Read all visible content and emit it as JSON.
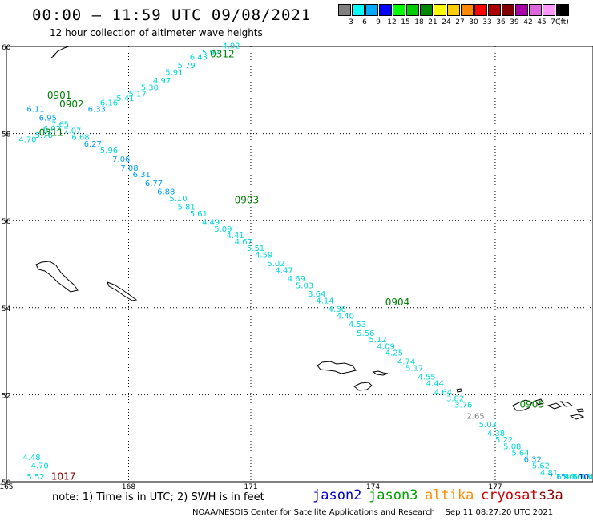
{
  "header": {
    "title": "00:00 – 11:59 UTC 09/08/2021",
    "subtitle": "12 hour collection of altimeter wave heights"
  },
  "colorbar": {
    "unit": "(ft)",
    "bins": [
      {
        "label": "3",
        "color": "#808080"
      },
      {
        "label": "6",
        "color": "#00ffff"
      },
      {
        "label": "9",
        "color": "#00aaff"
      },
      {
        "label": "12",
        "color": "#0000ff"
      },
      {
        "label": "15",
        "color": "#00ff00"
      },
      {
        "label": "18",
        "color": "#00cc00"
      },
      {
        "label": "21",
        "color": "#008800"
      },
      {
        "label": "24",
        "color": "#ffff00"
      },
      {
        "label": "27",
        "color": "#ffcc00"
      },
      {
        "label": "30",
        "color": "#ff8800"
      },
      {
        "label": "33",
        "color": "#ff0000"
      },
      {
        "label": "36",
        "color": "#aa0000"
      },
      {
        "label": "39",
        "color": "#800000"
      },
      {
        "label": "42",
        "color": "#aa00aa"
      },
      {
        "label": "45",
        "color": "#dd66dd"
      },
      {
        "label": "70",
        "color": "#ff99ff"
      },
      {
        "label": "",
        "color": "#000000"
      }
    ]
  },
  "map": {
    "lat_range": [
      50,
      60
    ],
    "lon_range": [
      165,
      179.4
    ],
    "lat_ticks": [
      "50",
      "52",
      "54",
      "56",
      "58",
      "60"
    ],
    "lon_ticks": [
      "165",
      "168",
      "171",
      "174",
      "177"
    ],
    "colors": {
      "grid": "#000000",
      "coast": "#000000",
      "jason3": "#008000",
      "cryosat": "#8b0000",
      "swh_cyan": "#00d8d8",
      "swh_blue": "#00a0ff",
      "swh_gray": "#808080"
    }
  },
  "chart_data": {
    "type": "scatter",
    "title": "12 hour collection of altimeter wave heights",
    "xlabel": "",
    "ylabel": "",
    "xlim": [
      165,
      179.4
    ],
    "ylim": [
      50,
      60
    ],
    "pass_labels": [
      {
        "text": "0312",
        "lon": 170.0,
        "lat": 59.75,
        "sat": "jason3"
      },
      {
        "text": "0901",
        "lon": 166.0,
        "lat": 58.8,
        "sat": "jason3"
      },
      {
        "text": "0902",
        "lon": 166.3,
        "lat": 58.6,
        "sat": "jason3"
      },
      {
        "text": "0311",
        "lon": 165.8,
        "lat": 57.95,
        "sat": "jason3"
      },
      {
        "text": "0903",
        "lon": 170.6,
        "lat": 56.4,
        "sat": "jason3"
      },
      {
        "text": "0904",
        "lon": 174.3,
        "lat": 54.05,
        "sat": "jason3"
      },
      {
        "text": "0905",
        "lon": 177.6,
        "lat": 51.7,
        "sat": "jason3"
      },
      {
        "text": "1017",
        "lon": 166.1,
        "lat": 50.05,
        "sat": "cryosat"
      }
    ],
    "points": [
      {
        "lon": 170.3,
        "lat": 59.95,
        "swh": "4.92",
        "c": "cyan"
      },
      {
        "lon": 169.8,
        "lat": 59.8,
        "swh": "5.92",
        "c": "cyan"
      },
      {
        "lon": 169.5,
        "lat": 59.7,
        "swh": "6.43",
        "c": "cyan"
      },
      {
        "lon": 169.2,
        "lat": 59.5,
        "swh": "5.79",
        "c": "cyan"
      },
      {
        "lon": 168.9,
        "lat": 59.35,
        "swh": "5.91",
        "c": "cyan"
      },
      {
        "lon": 168.6,
        "lat": 59.15,
        "swh": "4.97",
        "c": "cyan"
      },
      {
        "lon": 168.3,
        "lat": 59.0,
        "swh": "5.30",
        "c": "cyan"
      },
      {
        "lon": 168.0,
        "lat": 58.85,
        "swh": "5.17",
        "c": "cyan"
      },
      {
        "lon": 167.7,
        "lat": 58.75,
        "swh": "5.41",
        "c": "cyan"
      },
      {
        "lon": 167.3,
        "lat": 58.65,
        "swh": "6.16",
        "c": "cyan"
      },
      {
        "lon": 167.0,
        "lat": 58.5,
        "swh": "6.33",
        "c": "blue"
      },
      {
        "lon": 165.5,
        "lat": 58.5,
        "swh": "6.11",
        "c": "blue"
      },
      {
        "lon": 165.8,
        "lat": 58.3,
        "swh": "6.95",
        "c": "blue"
      },
      {
        "lon": 166.1,
        "lat": 58.15,
        "swh": "7.65",
        "c": "cyan"
      },
      {
        "lon": 165.9,
        "lat": 58.05,
        "swh": "6.02",
        "c": "cyan"
      },
      {
        "lon": 166.4,
        "lat": 58.0,
        "swh": "7.07",
        "c": "cyan"
      },
      {
        "lon": 165.7,
        "lat": 57.9,
        "swh": "5.76",
        "c": "cyan"
      },
      {
        "lon": 166.6,
        "lat": 57.85,
        "swh": "6.68",
        "c": "cyan"
      },
      {
        "lon": 165.3,
        "lat": 57.8,
        "swh": "4.70",
        "c": "cyan"
      },
      {
        "lon": 166.9,
        "lat": 57.7,
        "swh": "6.27",
        "c": "blue"
      },
      {
        "lon": 167.3,
        "lat": 57.55,
        "swh": "5.96",
        "c": "cyan"
      },
      {
        "lon": 167.6,
        "lat": 57.35,
        "swh": "7.06",
        "c": "blue"
      },
      {
        "lon": 167.8,
        "lat": 57.15,
        "swh": "7.08",
        "c": "blue"
      },
      {
        "lon": 168.1,
        "lat": 57.0,
        "swh": "6.31",
        "c": "blue"
      },
      {
        "lon": 168.4,
        "lat": 56.8,
        "swh": "6.77",
        "c": "blue"
      },
      {
        "lon": 168.7,
        "lat": 56.6,
        "swh": "6.88",
        "c": "blue"
      },
      {
        "lon": 169.0,
        "lat": 56.45,
        "swh": "5.10",
        "c": "cyan"
      },
      {
        "lon": 169.2,
        "lat": 56.25,
        "swh": "5.81",
        "c": "cyan"
      },
      {
        "lon": 169.5,
        "lat": 56.1,
        "swh": "5.61",
        "c": "cyan"
      },
      {
        "lon": 169.8,
        "lat": 55.9,
        "swh": "4.49",
        "c": "cyan"
      },
      {
        "lon": 170.1,
        "lat": 55.75,
        "swh": "5.09",
        "c": "cyan"
      },
      {
        "lon": 170.4,
        "lat": 55.6,
        "swh": "4.41",
        "c": "cyan"
      },
      {
        "lon": 170.6,
        "lat": 55.45,
        "swh": "4.67",
        "c": "cyan"
      },
      {
        "lon": 170.9,
        "lat": 55.3,
        "swh": "5.51",
        "c": "cyan"
      },
      {
        "lon": 171.1,
        "lat": 55.15,
        "swh": "4.59",
        "c": "cyan"
      },
      {
        "lon": 171.4,
        "lat": 54.95,
        "swh": "5.02",
        "c": "cyan"
      },
      {
        "lon": 171.6,
        "lat": 54.8,
        "swh": "4.47",
        "c": "cyan"
      },
      {
        "lon": 171.9,
        "lat": 54.6,
        "swh": "4.69",
        "c": "cyan"
      },
      {
        "lon": 172.1,
        "lat": 54.45,
        "swh": "5.03",
        "c": "cyan"
      },
      {
        "lon": 172.4,
        "lat": 54.25,
        "swh": "3.64",
        "c": "cyan"
      },
      {
        "lon": 172.6,
        "lat": 54.1,
        "swh": "4.14",
        "c": "cyan"
      },
      {
        "lon": 172.9,
        "lat": 53.9,
        "swh": "4.66",
        "c": "cyan"
      },
      {
        "lon": 173.1,
        "lat": 53.75,
        "swh": "4.40",
        "c": "cyan"
      },
      {
        "lon": 173.4,
        "lat": 53.55,
        "swh": "4.53",
        "c": "cyan"
      },
      {
        "lon": 173.6,
        "lat": 53.35,
        "swh": "5.56",
        "c": "cyan"
      },
      {
        "lon": 173.9,
        "lat": 53.2,
        "swh": "5.12",
        "c": "cyan"
      },
      {
        "lon": 174.1,
        "lat": 53.05,
        "swh": "4.09",
        "c": "cyan"
      },
      {
        "lon": 174.3,
        "lat": 52.9,
        "swh": "4.25",
        "c": "cyan"
      },
      {
        "lon": 174.6,
        "lat": 52.7,
        "swh": "4.74",
        "c": "cyan"
      },
      {
        "lon": 174.8,
        "lat": 52.55,
        "swh": "5.17",
        "c": "cyan"
      },
      {
        "lon": 175.1,
        "lat": 52.35,
        "swh": "4.55",
        "c": "cyan"
      },
      {
        "lon": 175.3,
        "lat": 52.2,
        "swh": "4.44",
        "c": "cyan"
      },
      {
        "lon": 175.5,
        "lat": 52.0,
        "swh": "4.64",
        "c": "cyan"
      },
      {
        "lon": 175.8,
        "lat": 51.85,
        "swh": "3.82",
        "c": "cyan"
      },
      {
        "lon": 176.0,
        "lat": 51.7,
        "swh": "3.76",
        "c": "cyan"
      },
      {
        "lon": 176.3,
        "lat": 51.45,
        "swh": "2.65",
        "c": "gray"
      },
      {
        "lon": 176.6,
        "lat": 51.25,
        "swh": "5.03",
        "c": "cyan"
      },
      {
        "lon": 176.8,
        "lat": 51.05,
        "swh": "4.38",
        "c": "cyan"
      },
      {
        "lon": 177.0,
        "lat": 50.9,
        "swh": "5.22",
        "c": "cyan"
      },
      {
        "lon": 177.2,
        "lat": 50.75,
        "swh": "5.08",
        "c": "cyan"
      },
      {
        "lon": 177.4,
        "lat": 50.6,
        "swh": "5.64",
        "c": "cyan"
      },
      {
        "lon": 177.7,
        "lat": 50.45,
        "swh": "6.32",
        "c": "blue"
      },
      {
        "lon": 177.9,
        "lat": 50.3,
        "swh": "5.62",
        "c": "cyan"
      },
      {
        "lon": 178.1,
        "lat": 50.15,
        "swh": "4.81",
        "c": "cyan"
      },
      {
        "lon": 178.3,
        "lat": 50.0,
        "swh": "7.15",
        "c": "blue"
      },
      {
        "lon": 178.5,
        "lat": 49.85,
        "swh": "6.96",
        "c": "cyan"
      },
      {
        "lon": 178.7,
        "lat": 49.7,
        "swh": "4.56",
        "c": "cyan"
      },
      {
        "lon": 178.9,
        "lat": 49.55,
        "swh": "6.13",
        "c": "cyan"
      },
      {
        "lon": 179.1,
        "lat": 49.4,
        "swh": "4.46",
        "c": "cyan"
      },
      {
        "lon": 179.05,
        "lat": 49.25,
        "swh": "10.",
        "c": "navy"
      },
      {
        "lon": 165.4,
        "lat": 50.5,
        "swh": "4.48",
        "c": "cyan"
      },
      {
        "lon": 165.6,
        "lat": 50.3,
        "swh": "4.70",
        "c": "cyan"
      },
      {
        "lon": 165.5,
        "lat": 50.05,
        "swh": "5.52",
        "c": "cyan"
      }
    ]
  },
  "legend": {
    "note": "note: 1) Time is in UTC; 2) SWH is in feet",
    "satellites": [
      {
        "name": "jason2",
        "color": "#0000cc"
      },
      {
        "name": "jason3",
        "color": "#00a000"
      },
      {
        "name": "altika",
        "color": "#ff8c00"
      },
      {
        "name": "cryosat",
        "color": "#cc0000"
      },
      {
        "name": "s3a",
        "color": "#8b0000"
      }
    ]
  },
  "footer": {
    "credit": "NOAA/NESDIS Center for Satellite Applications and Research",
    "timestamp": "Sep 11 08:27:20 UTC 2021"
  }
}
